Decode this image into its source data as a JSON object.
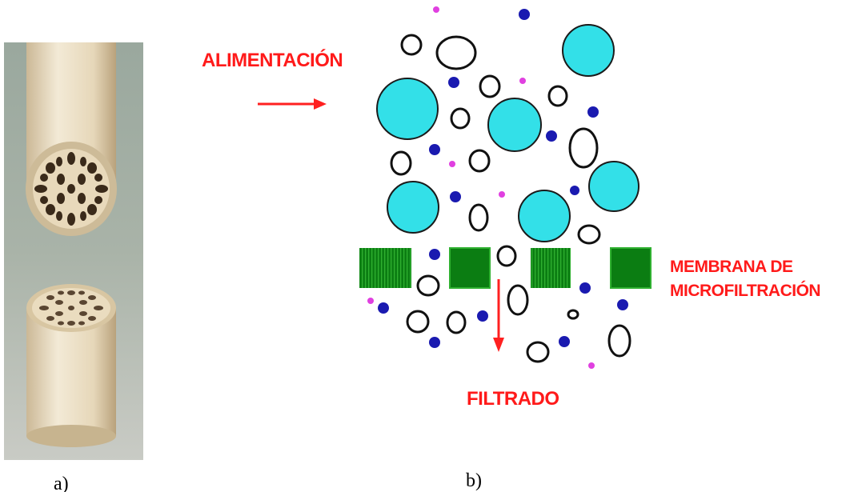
{
  "panel_a": {
    "caption": "a)",
    "image": "ceramic-multichannel-membrane-tubes-photo"
  },
  "panel_b": {
    "caption": "b)",
    "feed_label": "ALIMENTACIÓN",
    "membrane_label_line1": "MEMBRANA DE",
    "membrane_label_line2": "MICROFILTRACIÓN",
    "filtrate_label": "FILTRADO"
  },
  "colors": {
    "arrow": "#ff2020",
    "label": "#ff1a1a",
    "large_particle": "#33e0e8",
    "small_particle": "#1a1ab0",
    "tiny_particle": "#e040e0",
    "membrane": "#0a7a10",
    "ring_particle": "#111111"
  }
}
